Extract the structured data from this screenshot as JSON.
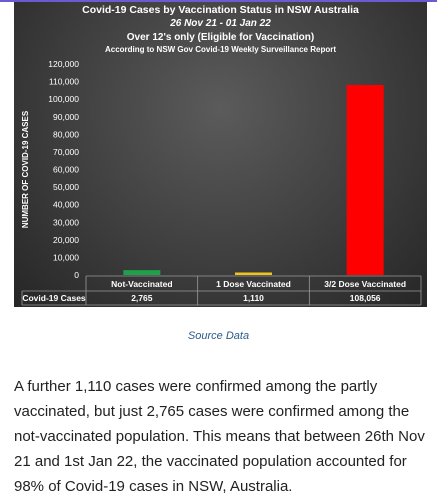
{
  "chart_data": {
    "type": "bar",
    "title": "Covid-19 Cases by Vaccination Status in NSW Australia",
    "subtitle": "26 Nov 21 - 01 Jan 22",
    "subtitle2": "Over 12's only (Eligible for Vaccination)",
    "subtitle3": "According to NSW Gov Covid-19 Weekly Surveillance Report",
    "xlabel": "",
    "ylabel": "NUMBER OF COVID-19 CASES",
    "ylim": [
      0,
      120000
    ],
    "y_ticks": [
      "0",
      "10,000",
      "20,000",
      "30,000",
      "40,000",
      "50,000",
      "60,000",
      "70,000",
      "80,000",
      "90,000",
      "100,000",
      "110,000",
      "120,000"
    ],
    "categories": [
      "Not-Vaccinated",
      "1 Dose Vaccinated",
      "3/2 Dose Vaccinated"
    ],
    "values": [
      2765,
      1110,
      108056
    ],
    "colors": [
      "#1fa04a",
      "#f0c419",
      "#ff0000"
    ],
    "table_row_label": "Covid-19 Cases",
    "table_values": [
      "2,765",
      "1,110",
      "108,056"
    ],
    "grid": false,
    "legend": "none"
  },
  "caption": "Source Data",
  "paragraph": "A further 1,110 cases were confirmed among the partly vaccinated, but just 2,765 cases were confirmed among the not-vaccinated population. This means that between 26th Nov 21 and 1st Jan 22, the vaccinated population accounted for 98% of Covid-19 cases in NSW, Australia."
}
